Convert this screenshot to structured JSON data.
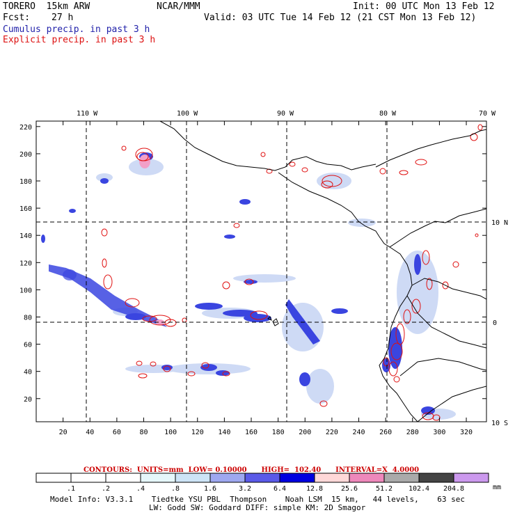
{
  "header": {
    "model": "TORERO  15km ARW",
    "org": "NCAR/MMM",
    "init": "Init: 00 UTC Mon 13 Feb 12",
    "fcst_label": "Fcst:",
    "fcst_value": "27 h",
    "valid": "Valid: 03 UTC Tue 14 Feb 12 (21 CST Mon 13 Feb 12)",
    "legend_cumulus": "Cumulus precip. in past 3 h",
    "legend_explicit": "Explicit precip. in past 3 h"
  },
  "map": {
    "lon_labels": [
      "110 W",
      "100 W",
      "90 W",
      "80 W",
      "70 W"
    ],
    "lat_labels": [
      "10 N",
      "0",
      "10 S"
    ],
    "x_ticks": [
      "20",
      "40",
      "60",
      "80",
      "100",
      "120",
      "140",
      "160",
      "180",
      "200",
      "220",
      "240",
      "260",
      "280",
      "300",
      "320"
    ],
    "y_ticks": [
      "20",
      "40",
      "60",
      "80",
      "100",
      "120",
      "140",
      "160",
      "180",
      "200",
      "220"
    ],
    "x_range": [
      0,
      335
    ],
    "y_range": [
      3,
      224
    ]
  },
  "contour_info": {
    "text": "CONTOURS:  UNITS=mm  LOW= 0.10000      HIGH=  102.40      INTERVAL=X  4.0000",
    "color": "#cc0000"
  },
  "colorbar": {
    "levels": [
      ".1",
      ".2",
      ".4",
      ".8",
      "1.6",
      "3.2",
      "6.4",
      "12.8",
      "25.6",
      "51.2",
      "102.4",
      "204.8"
    ],
    "colors": [
      "#ffffff",
      "#ffffff",
      "#ffffff",
      "#e6f7fb",
      "#cde4f6",
      "#9ea8f0",
      "#5a5ae8",
      "#0000e0",
      "#ffd8d8",
      "#ee88bb",
      "#aaaaaa",
      "#444444",
      "#cc99ee"
    ],
    "unit": "mm"
  },
  "footer": {
    "line1": "Model Info: V3.3.1    Tiedtke YSU PBL  Thompson    Noah LSM  15 km,   44 levels,    63 sec",
    "line2": "LW: Godd SW: Goddard DIFF: simple KM: 2D Smagor"
  }
}
